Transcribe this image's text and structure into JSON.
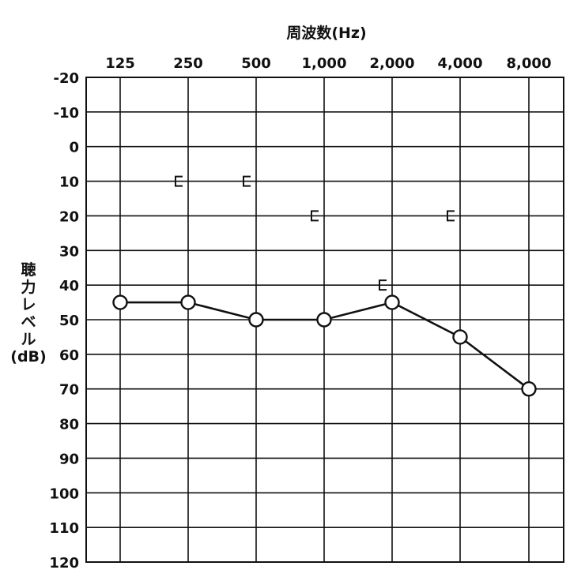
{
  "chart_data": {
    "type": "line",
    "xlabel": "周波数(Hz)",
    "ylabel_lines": [
      "聴",
      "力",
      "レ",
      "ベ",
      "ル",
      "(dB)"
    ],
    "frequencies": [
      "125",
      "250",
      "500",
      "1,000",
      "2,000",
      "4,000",
      "8,000"
    ],
    "y_ticks": [
      "-20",
      "-10",
      "0",
      "10",
      "20",
      "30",
      "40",
      "50",
      "60",
      "70",
      "80",
      "90",
      "100",
      "110",
      "120"
    ],
    "ylim": [
      -20,
      120
    ],
    "y_inverted": true,
    "grid": true,
    "series": [
      {
        "marker": "circle",
        "connected": true,
        "x": [
          "125",
          "250",
          "500",
          "1,000",
          "2,000",
          "4,000",
          "8,000"
        ],
        "values": [
          45,
          45,
          50,
          50,
          45,
          55,
          70
        ]
      },
      {
        "marker": "bracket-left",
        "connected": false,
        "x": [
          "250",
          "500",
          "1,000",
          "2,000",
          "4,000"
        ],
        "values": [
          10,
          10,
          20,
          40,
          20
        ]
      }
    ]
  }
}
